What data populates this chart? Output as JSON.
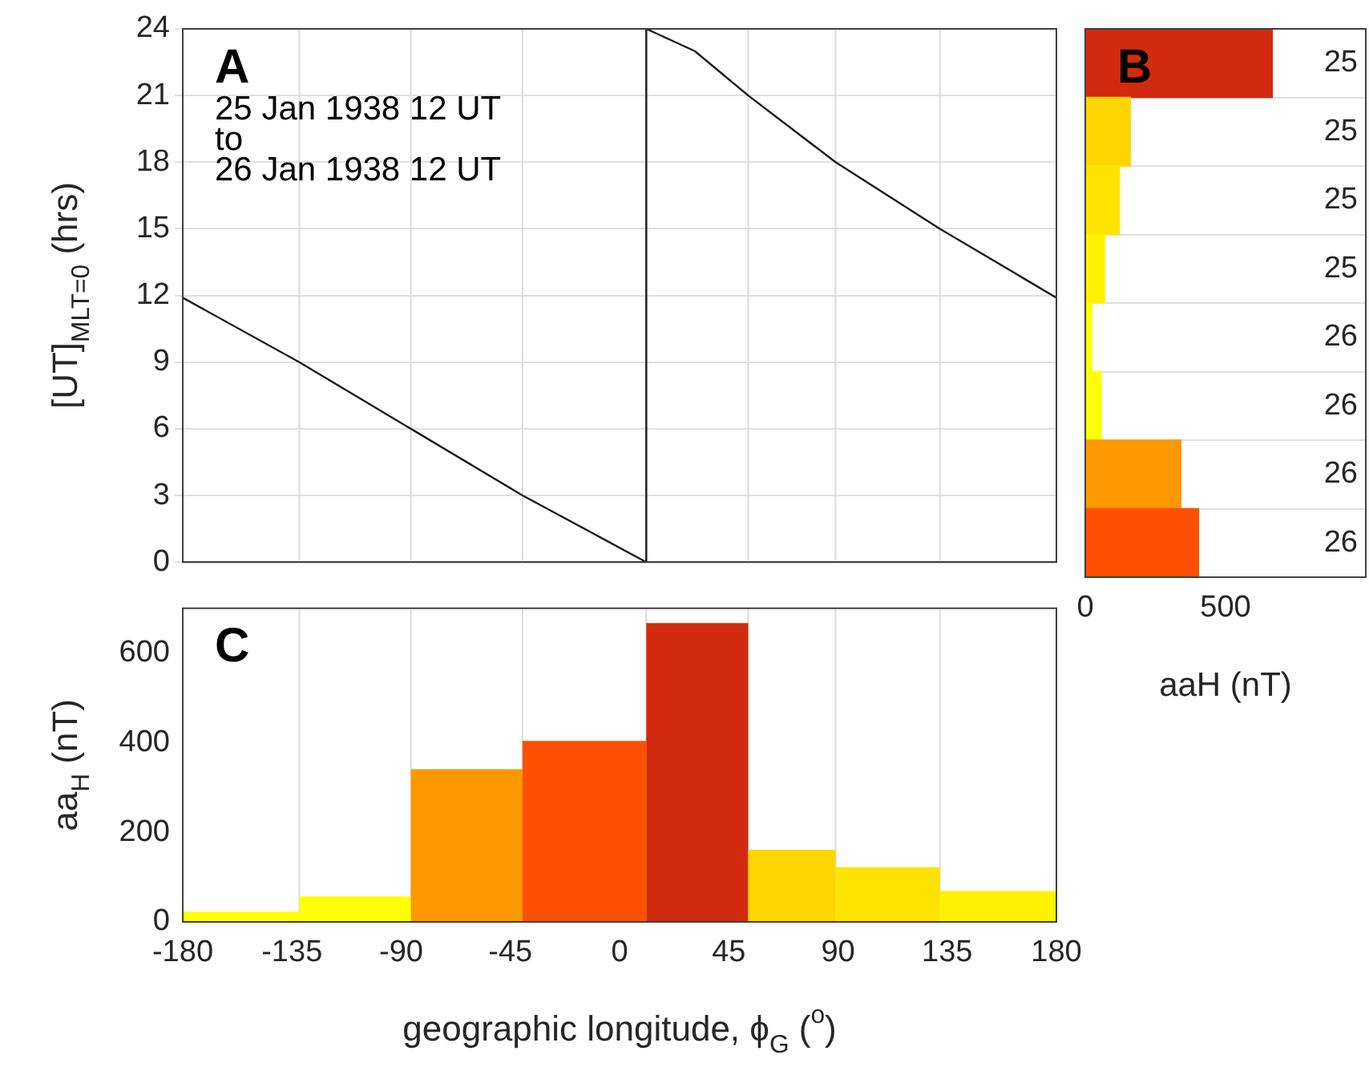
{
  "chart_data": [
    {
      "type": "line",
      "ylabel": "[UT]$_{MLT=0}$ (hrs)",
      "annotations": [
        "A",
        "25 Jan 1938 12 UT",
        "to",
        "26 Jan 1938 12 UT"
      ],
      "series": [
        {
          "color": "#1a1a1a",
          "x": [
            -180,
            -132,
            -86,
            -40,
            11,
            11,
            31,
            53,
            89,
            132,
            180
          ],
          "values": [
            11.9,
            9,
            6,
            3,
            0,
            24,
            23,
            21,
            18,
            15,
            11.9
          ]
        }
      ],
      "xlim": [
        -180,
        180
      ],
      "xticks": [
        -180,
        -135,
        -90,
        -45,
        0,
        45,
        90,
        135,
        180
      ],
      "ylim": [
        0,
        24
      ],
      "yticks": [
        0,
        3,
        6,
        9,
        12,
        15,
        18,
        21,
        24
      ],
      "tick_labels": "y",
      "grid": "y",
      "marker": "none",
      "ref_lines": [
        {
          "axis": "x",
          "value": -132,
          "color": "#dcdcdc"
        },
        {
          "axis": "x",
          "value": -86,
          "color": "#dcdcdc"
        },
        {
          "axis": "x",
          "value": -40,
          "color": "#dcdcdc"
        },
        {
          "axis": "x",
          "value": 11,
          "color": "#dcdcdc"
        },
        {
          "axis": "x",
          "value": 53,
          "color": "#dcdcdc"
        },
        {
          "axis": "x",
          "value": 89,
          "color": "#dcdcdc"
        },
        {
          "axis": "x",
          "value": 132,
          "color": "#dcdcdc"
        }
      ]
    },
    {
      "type": "bar",
      "orientation": "horizontal",
      "annotations": [
        "B"
      ],
      "categories": [
        "25",
        "25",
        "25",
        "25",
        "26",
        "26",
        "26",
        "26"
      ],
      "values": [
        667,
        161,
        122,
        69,
        23,
        57,
        341,
        404
      ],
      "colors": [
        "#d22a0e",
        "#ffd500",
        "#ffe300",
        "#fff200",
        "#ffff00",
        "#ffff00",
        "#fd9800",
        "#ff5000"
      ],
      "xlabel": "aaH (nT)",
      "xlim": [
        0,
        1000
      ],
      "xticks": [
        0,
        500
      ],
      "grid": "y"
    },
    {
      "type": "histogram",
      "annotations": [
        "C"
      ],
      "bins": [
        -180,
        -132,
        -86,
        -40,
        11,
        53,
        89,
        132,
        180
      ],
      "values": [
        23,
        57,
        341,
        404,
        667,
        161,
        122,
        69
      ],
      "colors": [
        "#ffff00",
        "#ffff00",
        "#fd9800",
        "#ff5000",
        "#d22a0e",
        "#ffd500",
        "#ffe300",
        "#fff200"
      ],
      "xlabel": "geographic longitude, ϕ$_{G}$ ($^{o}$)",
      "ylabel": "aa$_{H}$ (nT)",
      "xlim": [
        -180,
        180
      ],
      "xticks": [
        -180,
        -135,
        -90,
        -45,
        0,
        45,
        90,
        135,
        180
      ],
      "ylim": [
        0,
        700
      ],
      "yticks": [
        0,
        200,
        400,
        600
      ],
      "ref_lines": [
        {
          "axis": "x",
          "value": -132,
          "color": "#dcdcdc"
        },
        {
          "axis": "x",
          "value": -86,
          "color": "#dcdcdc"
        },
        {
          "axis": "x",
          "value": -40,
          "color": "#dcdcdc"
        },
        {
          "axis": "x",
          "value": 11,
          "color": "#dcdcdc"
        },
        {
          "axis": "x",
          "value": 53,
          "color": "#dcdcdc"
        },
        {
          "axis": "x",
          "value": 89,
          "color": "#dcdcdc"
        },
        {
          "axis": "x",
          "value": 132,
          "color": "#dcdcdc"
        }
      ]
    }
  ]
}
